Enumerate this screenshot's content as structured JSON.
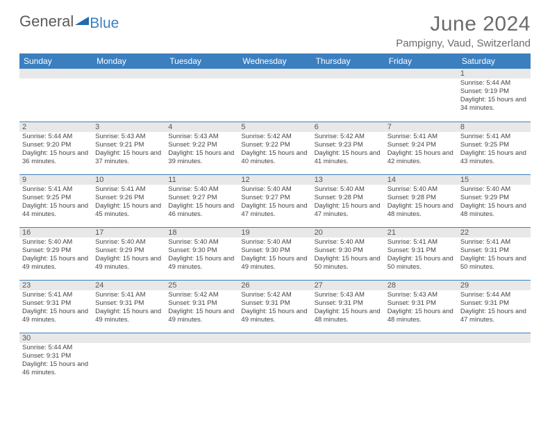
{
  "logo": {
    "text1": "General",
    "text2": "Blue"
  },
  "title": "June 2024",
  "subtitle": "Pampigny, Vaud, Switzerland",
  "header_bg": "#3b7fbf",
  "dayheaders": [
    "Sunday",
    "Monday",
    "Tuesday",
    "Wednesday",
    "Thursday",
    "Friday",
    "Saturday"
  ],
  "first_weekday": 6,
  "days_in_month": 30,
  "days": {
    "1": {
      "sunrise": "5:44 AM",
      "sunset": "9:19 PM",
      "dl": "15 hours and 34 minutes."
    },
    "2": {
      "sunrise": "5:44 AM",
      "sunset": "9:20 PM",
      "dl": "15 hours and 36 minutes."
    },
    "3": {
      "sunrise": "5:43 AM",
      "sunset": "9:21 PM",
      "dl": "15 hours and 37 minutes."
    },
    "4": {
      "sunrise": "5:43 AM",
      "sunset": "9:22 PM",
      "dl": "15 hours and 39 minutes."
    },
    "5": {
      "sunrise": "5:42 AM",
      "sunset": "9:22 PM",
      "dl": "15 hours and 40 minutes."
    },
    "6": {
      "sunrise": "5:42 AM",
      "sunset": "9:23 PM",
      "dl": "15 hours and 41 minutes."
    },
    "7": {
      "sunrise": "5:41 AM",
      "sunset": "9:24 PM",
      "dl": "15 hours and 42 minutes."
    },
    "8": {
      "sunrise": "5:41 AM",
      "sunset": "9:25 PM",
      "dl": "15 hours and 43 minutes."
    },
    "9": {
      "sunrise": "5:41 AM",
      "sunset": "9:25 PM",
      "dl": "15 hours and 44 minutes."
    },
    "10": {
      "sunrise": "5:41 AM",
      "sunset": "9:26 PM",
      "dl": "15 hours and 45 minutes."
    },
    "11": {
      "sunrise": "5:40 AM",
      "sunset": "9:27 PM",
      "dl": "15 hours and 46 minutes."
    },
    "12": {
      "sunrise": "5:40 AM",
      "sunset": "9:27 PM",
      "dl": "15 hours and 47 minutes."
    },
    "13": {
      "sunrise": "5:40 AM",
      "sunset": "9:28 PM",
      "dl": "15 hours and 47 minutes."
    },
    "14": {
      "sunrise": "5:40 AM",
      "sunset": "9:28 PM",
      "dl": "15 hours and 48 minutes."
    },
    "15": {
      "sunrise": "5:40 AM",
      "sunset": "9:29 PM",
      "dl": "15 hours and 48 minutes."
    },
    "16": {
      "sunrise": "5:40 AM",
      "sunset": "9:29 PM",
      "dl": "15 hours and 49 minutes."
    },
    "17": {
      "sunrise": "5:40 AM",
      "sunset": "9:29 PM",
      "dl": "15 hours and 49 minutes."
    },
    "18": {
      "sunrise": "5:40 AM",
      "sunset": "9:30 PM",
      "dl": "15 hours and 49 minutes."
    },
    "19": {
      "sunrise": "5:40 AM",
      "sunset": "9:30 PM",
      "dl": "15 hours and 49 minutes."
    },
    "20": {
      "sunrise": "5:40 AM",
      "sunset": "9:30 PM",
      "dl": "15 hours and 50 minutes."
    },
    "21": {
      "sunrise": "5:41 AM",
      "sunset": "9:31 PM",
      "dl": "15 hours and 50 minutes."
    },
    "22": {
      "sunrise": "5:41 AM",
      "sunset": "9:31 PM",
      "dl": "15 hours and 50 minutes."
    },
    "23": {
      "sunrise": "5:41 AM",
      "sunset": "9:31 PM",
      "dl": "15 hours and 49 minutes."
    },
    "24": {
      "sunrise": "5:41 AM",
      "sunset": "9:31 PM",
      "dl": "15 hours and 49 minutes."
    },
    "25": {
      "sunrise": "5:42 AM",
      "sunset": "9:31 PM",
      "dl": "15 hours and 49 minutes."
    },
    "26": {
      "sunrise": "5:42 AM",
      "sunset": "9:31 PM",
      "dl": "15 hours and 49 minutes."
    },
    "27": {
      "sunrise": "5:43 AM",
      "sunset": "9:31 PM",
      "dl": "15 hours and 48 minutes."
    },
    "28": {
      "sunrise": "5:43 AM",
      "sunset": "9:31 PM",
      "dl": "15 hours and 48 minutes."
    },
    "29": {
      "sunrise": "5:44 AM",
      "sunset": "9:31 PM",
      "dl": "15 hours and 47 minutes."
    },
    "30": {
      "sunrise": "5:44 AM",
      "sunset": "9:31 PM",
      "dl": "15 hours and 46 minutes."
    }
  },
  "labels": {
    "sunrise": "Sunrise: ",
    "sunset": "Sunset: ",
    "daylight": "Daylight: "
  }
}
